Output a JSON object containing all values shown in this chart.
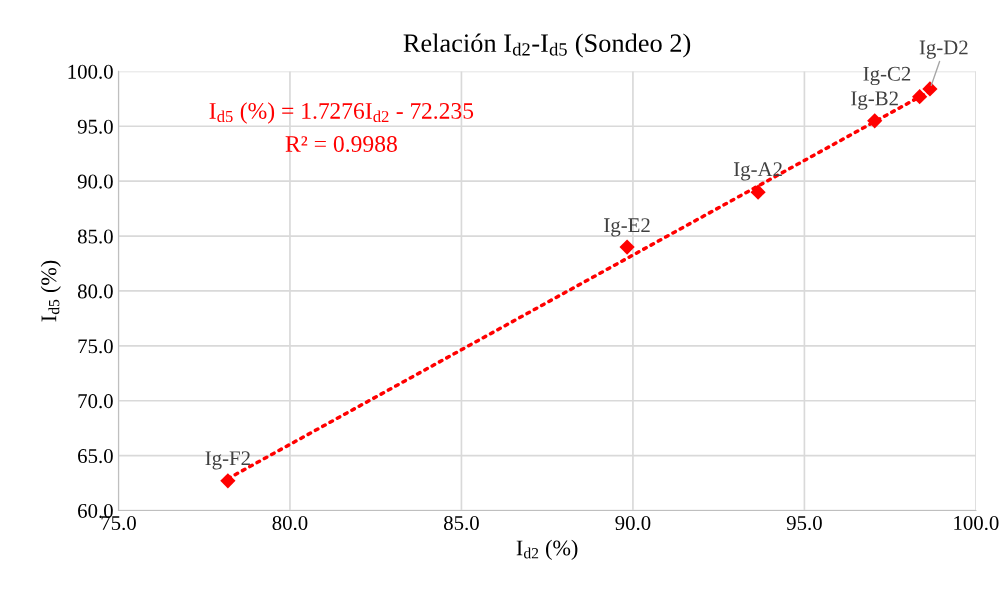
{
  "chart_data": {
    "type": "scatter",
    "title": "Relación I$_{d2}$-I$_{d5}$ (Sondeo 2)",
    "xlabel": "I$_{d2}$ (%)",
    "ylabel": "I$_{d5}$ (%)",
    "xlim": [
      75,
      100
    ],
    "xticks": [
      {
        "value": 75,
        "label": "75.0"
      },
      {
        "value": 80,
        "label": "80.0"
      },
      {
        "value": 85,
        "label": "85.0"
      },
      {
        "value": 90,
        "label": "90.0"
      },
      {
        "value": 95,
        "label": "95.0"
      },
      {
        "value": 100,
        "label": "100.0"
      }
    ],
    "ylim": [
      60,
      100
    ],
    "yticks": [
      {
        "value": 60,
        "label": "60.0"
      },
      {
        "value": 65,
        "label": "65.0"
      },
      {
        "value": 70,
        "label": "70.0"
      },
      {
        "value": 75,
        "label": "75.0"
      },
      {
        "value": 80,
        "label": "80.0"
      },
      {
        "value": 85,
        "label": "85.0"
      },
      {
        "value": 90,
        "label": "90.0"
      },
      {
        "value": 95,
        "label": "95.0"
      },
      {
        "value": 100,
        "label": "100.0"
      }
    ],
    "grid": true,
    "series": [
      {
        "marker": "diamond",
        "color": "#ff0000",
        "x": [
          93.65,
          97.05,
          98.36,
          98.66,
          89.83,
          78.19
        ],
        "values": [
          89.0,
          95.5,
          97.7,
          98.4,
          84.0,
          62.7
        ]
      },
      {
        "type": "line",
        "marker": "none",
        "color": "#ff0000",
        "line_style": "dotted",
        "x": [
          78.19,
          98.66
        ],
        "values": [
          62.9,
          98.2
        ]
      }
    ],
    "annotations": [
      {
        "text": "Ig-A2",
        "x": 93.65,
        "y": 89.05
      },
      {
        "text": "Ig-B2",
        "x": 97.05,
        "y": 95.5
      },
      {
        "text": "Ig-C2",
        "x": 98.36,
        "y": 97.74
      },
      {
        "text": "Ig-D2",
        "x": 98.66,
        "y": 98.37
      },
      {
        "text": "Ig-E2",
        "x": 89.83,
        "y": 83.95
      },
      {
        "text": "Ig-F2",
        "x": 78.19,
        "y": 62.72
      },
      "I$_{d5}$ (%) = 1.7276I$_{d2}$ - 72.235",
      "R² = 0.9988"
    ]
  }
}
